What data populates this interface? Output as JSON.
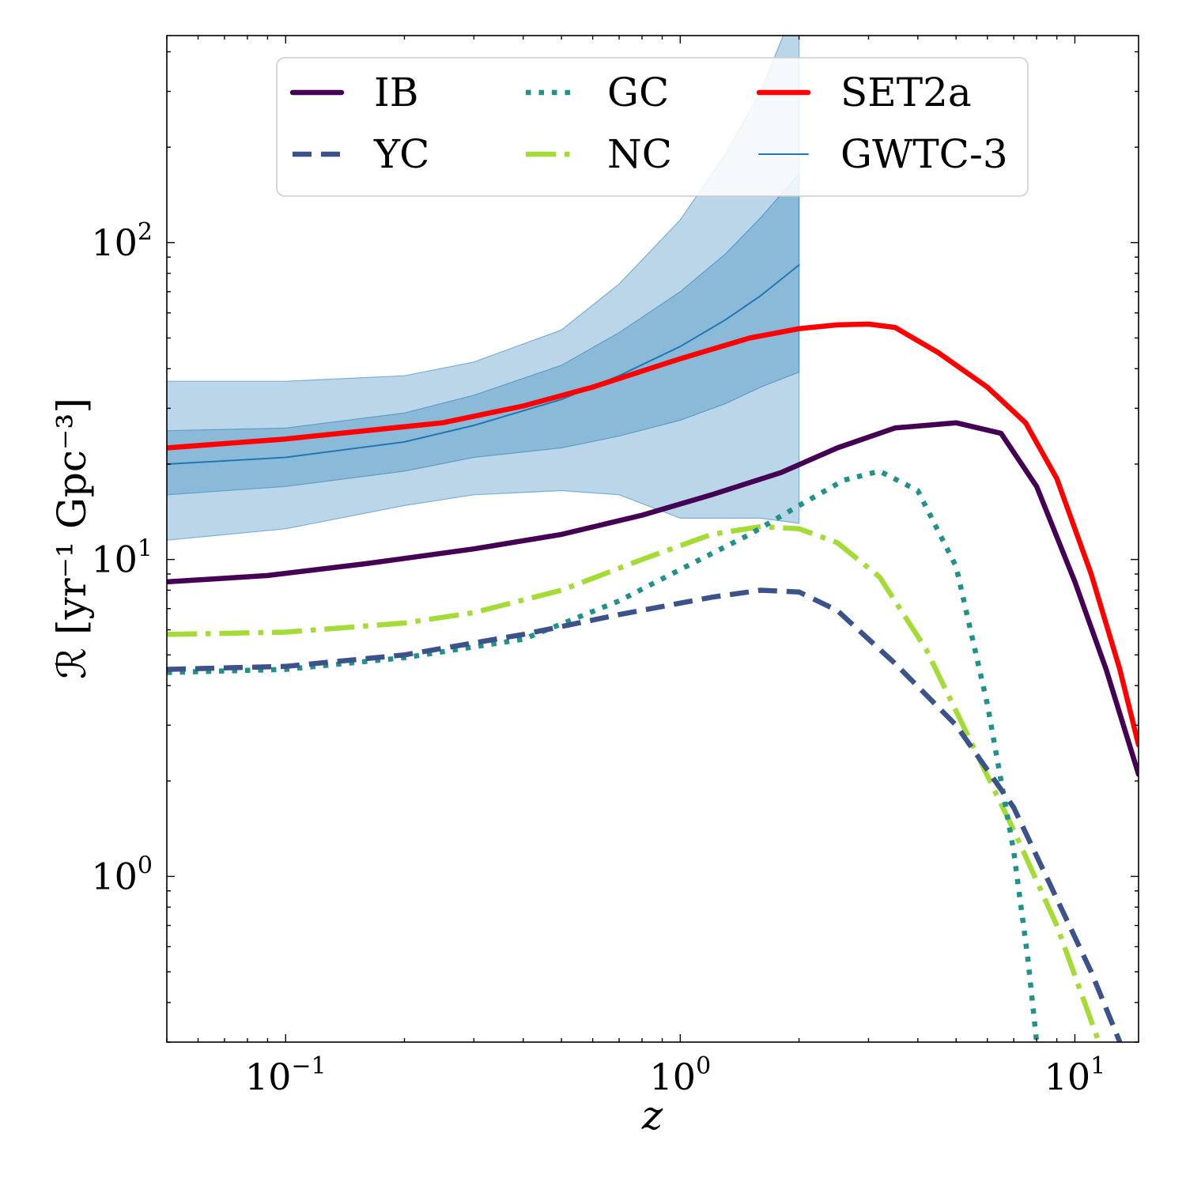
{
  "chart_data": {
    "type": "line",
    "title": "",
    "xlabel": "z",
    "ylabel": "ℛ [yr⁻¹ Gpc⁻³]",
    "xscale": "log",
    "yscale": "log",
    "xlim": [
      0.05,
      14.5
    ],
    "ylim": [
      0.3,
      450
    ],
    "grid": false,
    "legend_position": "top-center",
    "legend_columns": 3,
    "x_ticks": [
      {
        "base": "10",
        "exp": "−1",
        "value": 0.1
      },
      {
        "base": "10",
        "exp": "0",
        "value": 1
      },
      {
        "base": "10",
        "exp": "1",
        "value": 10
      }
    ],
    "y_ticks": [
      {
        "base": "10",
        "exp": "0",
        "value": 1
      },
      {
        "base": "10",
        "exp": "1",
        "value": 10
      },
      {
        "base": "10",
        "exp": "2",
        "value": 100
      }
    ],
    "series": [
      {
        "name": "IB",
        "color": "#440154",
        "style": "solid",
        "x": [
          0.05,
          0.09,
          0.16,
          0.3,
          0.5,
          0.8,
          1.2,
          1.8,
          2.5,
          3.5,
          5.0,
          6.5,
          8.0,
          10.0,
          12.0,
          14.5
        ],
        "y": [
          8.5,
          8.9,
          9.7,
          10.8,
          12.0,
          13.8,
          16.0,
          18.8,
          22.5,
          26.0,
          27.0,
          25.0,
          17.0,
          8.5,
          4.5,
          2.1
        ]
      },
      {
        "name": "YC",
        "color": "#3b528b",
        "style": "dashed",
        "x": [
          0.05,
          0.1,
          0.2,
          0.4,
          0.7,
          1.2,
          1.6,
          2.0,
          2.5,
          3.5,
          5.0,
          7.0,
          9.0,
          11.0,
          13.0
        ],
        "y": [
          4.5,
          4.6,
          5.0,
          5.8,
          6.7,
          7.6,
          8.0,
          7.9,
          6.9,
          4.7,
          3.0,
          1.65,
          0.85,
          0.5,
          0.3
        ]
      },
      {
        "name": "GC",
        "color": "#21918c",
        "style": "dotted",
        "x": [
          0.05,
          0.1,
          0.2,
          0.4,
          0.7,
          1.0,
          1.5,
          2.0,
          2.6,
          3.2,
          4.0,
          5.0,
          6.0,
          7.0,
          7.6,
          8.0
        ],
        "y": [
          4.4,
          4.5,
          4.9,
          5.6,
          7.4,
          9.3,
          12.0,
          14.8,
          17.8,
          19.0,
          16.5,
          9.5,
          3.5,
          1.2,
          0.55,
          0.3
        ]
      },
      {
        "name": "NC",
        "color": "#a5db36",
        "style": "dashdot",
        "x": [
          0.05,
          0.1,
          0.2,
          0.3,
          0.5,
          0.8,
          1.2,
          1.6,
          2.0,
          2.5,
          3.2,
          4.2,
          5.5,
          7.0,
          9.0,
          11.5
        ],
        "y": [
          5.8,
          5.9,
          6.3,
          6.8,
          8.0,
          10.0,
          12.0,
          12.7,
          12.5,
          11.3,
          8.8,
          5.2,
          2.6,
          1.4,
          0.7,
          0.3
        ]
      },
      {
        "name": "SET2a",
        "color": "#ff0000",
        "style": "solid",
        "x": [
          0.05,
          0.1,
          0.25,
          0.4,
          0.6,
          1.0,
          1.5,
          2.0,
          2.5,
          3.0,
          3.5,
          4.5,
          6.0,
          7.5,
          9.0,
          11.0,
          13.0,
          14.5
        ],
        "y": [
          22.5,
          24.0,
          27.0,
          30.5,
          35.0,
          43.0,
          50.0,
          53.5,
          55.0,
          55.3,
          54.0,
          45.0,
          35.0,
          27.0,
          18.0,
          9.0,
          4.5,
          2.6
        ]
      },
      {
        "name": "GWTC-3",
        "color": "#1f77b4",
        "style": "thin",
        "x": [
          0.05,
          0.1,
          0.2,
          0.3,
          0.5,
          0.7,
          1.0,
          1.3,
          1.6,
          2.0
        ],
        "y": [
          20.0,
          21.0,
          23.5,
          26.5,
          32.0,
          38.0,
          47.0,
          57.0,
          68.0,
          85.0
        ]
      }
    ],
    "bands": [
      {
        "color": "#1f77b4",
        "opacity": 0.3,
        "x": [
          0.05,
          0.1,
          0.2,
          0.3,
          0.5,
          0.7,
          1.0,
          1.3,
          1.6,
          2.0
        ],
        "lower": [
          11.5,
          12.5,
          14.8,
          16.0,
          16.5,
          16.0,
          13.5,
          13.5,
          13.5,
          13.0
        ],
        "upper": [
          36.5,
          36.5,
          38.0,
          42.0,
          53.0,
          74.0,
          118.0,
          190.0,
          300.0,
          600.0
        ]
      },
      {
        "color": "#1f77b4",
        "opacity": 0.3,
        "x": [
          0.05,
          0.1,
          0.2,
          0.3,
          0.5,
          0.7,
          1.0,
          1.3,
          1.6,
          2.0
        ],
        "lower": [
          16.0,
          17.0,
          19.0,
          21.0,
          22.5,
          24.5,
          27.5,
          31.0,
          35.0,
          39.0
        ],
        "upper": [
          25.5,
          26.0,
          29.0,
          33.0,
          41.0,
          52.0,
          70.0,
          92.0,
          120.0,
          165.0
        ]
      }
    ]
  }
}
